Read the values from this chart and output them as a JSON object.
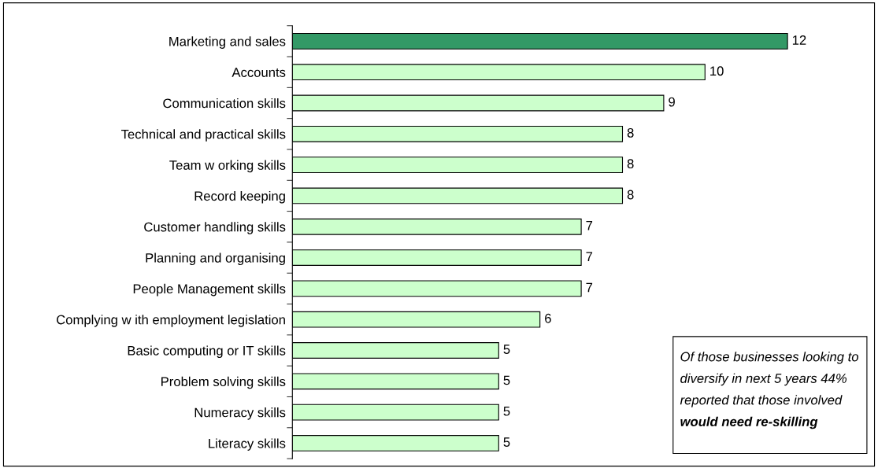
{
  "chart_data": {
    "type": "bar",
    "orientation": "horizontal",
    "categories": [
      "Marketing and sales",
      "Accounts",
      "Communication skills",
      "Technical and practical skills",
      "Team w orking skills",
      "Record keeping",
      "Customer handling skills",
      "Planning and organising",
      "People Management skills",
      "Complying w ith employment legislation",
      "Basic computing or IT skills",
      "Problem solving skills",
      "Numeracy skills",
      "Literacy skills"
    ],
    "values": [
      12,
      10,
      9,
      8,
      8,
      8,
      7,
      7,
      7,
      6,
      5,
      5,
      5,
      5
    ],
    "colors": [
      "#339966",
      "#ccffcc",
      "#ccffcc",
      "#ccffcc",
      "#ccffcc",
      "#ccffcc",
      "#ccffcc",
      "#ccffcc",
      "#ccffcc",
      "#ccffcc",
      "#ccffcc",
      "#ccffcc",
      "#ccffcc",
      "#ccffcc"
    ],
    "data_labels": true,
    "grid": false,
    "legend": false,
    "annotations": [
      "Of those businesses looking to",
      "diversify in next 5 years 44%",
      "reported that those involved",
      "would need re-skilling"
    ]
  }
}
